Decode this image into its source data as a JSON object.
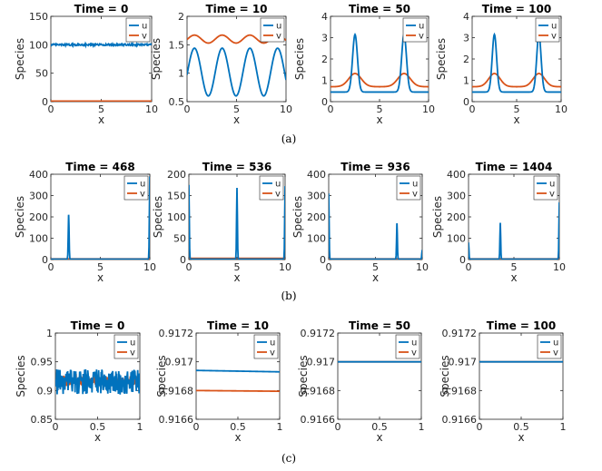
{
  "figure": {
    "captions": [
      "(a)",
      "(b)",
      "(c)"
    ],
    "xlabel": "x",
    "ylabel": "Species",
    "legend": [
      "u",
      "v"
    ],
    "colors": {
      "u": "#0072BD",
      "v": "#D95319",
      "axes": "#262626"
    }
  },
  "chart_data": [
    {
      "type": "line",
      "row": 0,
      "title": "Time = 0",
      "xlabel": "x",
      "ylabel": "Species",
      "xlim": [
        0,
        10
      ],
      "ylim": [
        0,
        150
      ],
      "xticks": [
        "0",
        "5",
        "10"
      ],
      "yticks": [
        "0",
        "50",
        "100",
        "150"
      ],
      "legend_position": "top-right",
      "series": [
        {
          "name": "u",
          "profile": "noisy",
          "mean": 100,
          "amplitude": 1.5
        },
        {
          "name": "v",
          "profile": "flat",
          "mean": 1
        }
      ]
    },
    {
      "type": "line",
      "row": 0,
      "title": "Time = 10",
      "xlabel": "x",
      "ylabel": "Species",
      "xlim": [
        0,
        10
      ],
      "ylim": [
        0.5,
        2
      ],
      "xticks": [
        "0",
        "5",
        "10"
      ],
      "yticks": [
        "0.5",
        "1",
        "1.5",
        "2"
      ],
      "legend_position": "top-right",
      "series": [
        {
          "name": "u",
          "profile": "wave",
          "mean": 1.02,
          "amplitude": 0.42,
          "period": 2.8,
          "phase": 0.75
        },
        {
          "name": "v",
          "profile": "wave",
          "mean": 1.6,
          "amplitude": 0.07,
          "period": 2.8,
          "phase": 0.75
        }
      ]
    },
    {
      "type": "line",
      "row": 0,
      "title": "Time = 50",
      "xlabel": "x",
      "ylabel": "Species",
      "xlim": [
        0,
        10
      ],
      "ylim": [
        0,
        4
      ],
      "xticks": [
        "0",
        "5",
        "10"
      ],
      "yticks": [
        "0",
        "1",
        "2",
        "3",
        "4"
      ],
      "legend_position": "top-right",
      "series": [
        {
          "name": "u",
          "profile": "peaks",
          "base": 0.45,
          "height": 2.7,
          "width": 0.35,
          "centers": [
            2.5,
            7.5
          ]
        },
        {
          "name": "v",
          "profile": "peaks",
          "base": 0.7,
          "height": 0.62,
          "width": 0.9,
          "centers": [
            2.5,
            7.5
          ]
        }
      ]
    },
    {
      "type": "line",
      "row": 0,
      "title": "Time = 100",
      "xlabel": "x",
      "ylabel": "Species",
      "xlim": [
        0,
        10
      ],
      "ylim": [
        0,
        4
      ],
      "xticks": [
        "0",
        "5",
        "10"
      ],
      "yticks": [
        "0",
        "1",
        "2",
        "3",
        "4"
      ],
      "legend_position": "top-right",
      "series": [
        {
          "name": "u",
          "profile": "peaks",
          "base": 0.45,
          "height": 2.7,
          "width": 0.35,
          "centers": [
            2.5,
            7.5
          ]
        },
        {
          "name": "v",
          "profile": "peaks",
          "base": 0.7,
          "height": 0.62,
          "width": 0.9,
          "centers": [
            2.5,
            7.5
          ]
        }
      ]
    },
    {
      "type": "line",
      "row": 1,
      "title": "Time = 468",
      "xlabel": "x",
      "ylabel": "Species",
      "xlim": [
        0,
        10
      ],
      "ylim": [
        0,
        400
      ],
      "xticks": [
        "0",
        "5",
        "10"
      ],
      "yticks": [
        "0",
        "100",
        "200",
        "300",
        "400"
      ],
      "legend_position": "top-right",
      "series": [
        {
          "name": "u",
          "profile": "spikes",
          "base": 2,
          "spikes": [
            [
              1.8,
              210
            ],
            [
              10,
              390
            ]
          ]
        },
        {
          "name": "v",
          "profile": "flat",
          "mean": 3
        }
      ]
    },
    {
      "type": "line",
      "row": 1,
      "title": "Time = 536",
      "xlabel": "x",
      "ylabel": "Species",
      "xlim": [
        0,
        10
      ],
      "ylim": [
        0,
        200
      ],
      "xticks": [
        "0",
        "5",
        "10"
      ],
      "yticks": [
        "0",
        "50",
        "100",
        "150",
        "200"
      ],
      "legend_position": "top-right",
      "series": [
        {
          "name": "u",
          "profile": "spikes",
          "base": 1,
          "spikes": [
            [
              0,
              175
            ],
            [
              5,
              168
            ],
            [
              10,
              172
            ]
          ]
        },
        {
          "name": "v",
          "profile": "flat",
          "mean": 3
        }
      ]
    },
    {
      "type": "line",
      "row": 1,
      "title": "Time = 936",
      "xlabel": "x",
      "ylabel": "Species",
      "xlim": [
        0,
        10
      ],
      "ylim": [
        0,
        400
      ],
      "xticks": [
        "0",
        "5",
        "10"
      ],
      "yticks": [
        "0",
        "100",
        "200",
        "300",
        "400"
      ],
      "legend_position": "top-right",
      "series": [
        {
          "name": "u",
          "profile": "spikes",
          "base": 2,
          "spikes": [
            [
              0,
              310
            ],
            [
              7.3,
              170
            ],
            [
              10,
              45
            ]
          ]
        },
        {
          "name": "v",
          "profile": "flat",
          "mean": 3
        }
      ]
    },
    {
      "type": "line",
      "row": 1,
      "title": "Time = 1404",
      "xlabel": "x",
      "ylabel": "Species",
      "xlim": [
        0,
        10
      ],
      "ylim": [
        0,
        400
      ],
      "xticks": [
        "0",
        "5",
        "10"
      ],
      "yticks": [
        "0",
        "100",
        "200",
        "300",
        "400"
      ],
      "legend_position": "top-right",
      "series": [
        {
          "name": "u",
          "profile": "spikes",
          "base": 2,
          "spikes": [
            [
              0,
              80
            ],
            [
              3.5,
              172
            ],
            [
              10,
              268
            ]
          ]
        },
        {
          "name": "v",
          "profile": "flat",
          "mean": 3
        }
      ]
    },
    {
      "type": "line",
      "row": 2,
      "title": "Time = 0",
      "xlabel": "x",
      "ylabel": "Species",
      "xlim": [
        0,
        1
      ],
      "ylim": [
        0.85,
        1
      ],
      "xticks": [
        "0",
        "0.5",
        "1"
      ],
      "yticks": [
        "0.85",
        "0.9",
        "0.95",
        "1"
      ],
      "legend_position": "top-right",
      "series": [
        {
          "name": "u",
          "profile": "noisy",
          "mean": 0.915,
          "amplitude": 0.022
        },
        {
          "name": "v",
          "profile": "noisy",
          "mean": 0.917,
          "amplitude": 0.008
        }
      ]
    },
    {
      "type": "line",
      "row": 2,
      "title": "Time = 10",
      "xlabel": "x",
      "ylabel": "Species",
      "xlim": [
        0,
        1
      ],
      "ylim": [
        0.9166,
        0.9172
      ],
      "xticks": [
        "0",
        "0.5",
        "1"
      ],
      "yticks": [
        "0.9166",
        "0.9168",
        "0.917",
        "0.9172"
      ],
      "legend_position": "top-right",
      "series": [
        {
          "name": "u",
          "profile": "linear",
          "from": 0.91694,
          "to": 0.91693
        },
        {
          "name": "v",
          "profile": "linear",
          "from": 0.9168,
          "to": 0.916795
        }
      ]
    },
    {
      "type": "line",
      "row": 2,
      "title": "Time = 50",
      "xlabel": "x",
      "ylabel": "Species",
      "xlim": [
        0,
        1
      ],
      "ylim": [
        0.9166,
        0.9172
      ],
      "xticks": [
        "0",
        "0.5",
        "1"
      ],
      "yticks": [
        "0.9166",
        "0.9168",
        "0.917",
        "0.9172"
      ],
      "legend_position": "top-right",
      "series": [
        {
          "name": "u",
          "profile": "flat",
          "mean": 0.917
        },
        {
          "name": "v",
          "profile": "flat",
          "mean": 0.917
        }
      ]
    },
    {
      "type": "line",
      "row": 2,
      "title": "Time = 100",
      "xlabel": "x",
      "ylabel": "Species",
      "xlim": [
        0,
        1
      ],
      "ylim": [
        0.9166,
        0.9172
      ],
      "xticks": [
        "0",
        "0.5",
        "1"
      ],
      "yticks": [
        "0.9166",
        "0.9168",
        "0.917",
        "0.9172"
      ],
      "legend_position": "top-right",
      "series": [
        {
          "name": "u",
          "profile": "flat",
          "mean": 0.917
        },
        {
          "name": "v",
          "profile": "flat",
          "mean": 0.917
        }
      ]
    }
  ]
}
